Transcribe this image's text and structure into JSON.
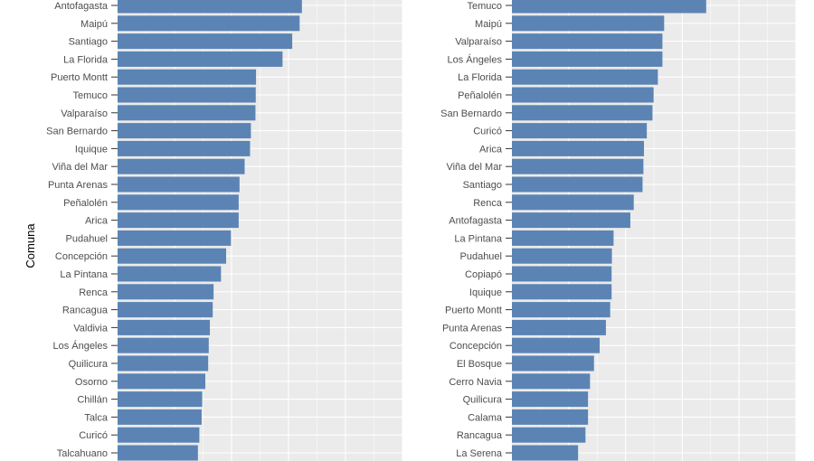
{
  "chart_data": [
    {
      "type": "bar",
      "orientation": "horizontal",
      "ylabel": "Comuna",
      "xlabel": "",
      "xlim": [
        0,
        100
      ],
      "grid": true,
      "colors": {
        "bar": "#5b84b4",
        "panel": "#ebebeb",
        "grid": "#ffffff"
      },
      "categories": [
        "Antofagasta",
        "Maipú",
        "Santiago",
        "La Florida",
        "Puerto Montt",
        "Temuco",
        "Valparaíso",
        "San Bernardo",
        "Iquique",
        "Viña del Mar",
        "Punta Arenas",
        "Peñalolén",
        "Arica",
        "Pudahuel",
        "Concepción",
        "La Pintana",
        "Renca",
        "Rancagua",
        "Valdivia",
        "Los Ángeles",
        "Quilicura",
        "Osorno",
        "Chillán",
        "Talca",
        "Curicó",
        "Talcahuano"
      ],
      "values": [
        64.7,
        63.9,
        61.3,
        57.9,
        48.6,
        48.5,
        48.4,
        46.8,
        46.5,
        44.6,
        42.8,
        42.5,
        42.5,
        39.8,
        38.1,
        36.3,
        33.7,
        33.4,
        32.4,
        32.0,
        31.8,
        30.8,
        29.7,
        29.5,
        28.7,
        28.2
      ]
    },
    {
      "type": "bar",
      "orientation": "horizontal",
      "ylabel": "",
      "xlabel": "",
      "xlim": [
        0,
        100
      ],
      "grid": true,
      "colors": {
        "bar": "#5b84b4",
        "panel": "#ebebeb",
        "grid": "#ffffff"
      },
      "categories": [
        "Temuco",
        "Maipú",
        "Valparaíso",
        "Los Ángeles",
        "La Florida",
        "Peñalolén",
        "San Bernardo",
        "Curicó",
        "Arica",
        "Viña del Mar",
        "Santiago",
        "Renca",
        "Antofagasta",
        "La Pintana",
        "Pudahuel",
        "Copiapó",
        "Iquique",
        "Puerto Montt",
        "Punta Arenas",
        "Concepción",
        "El Bosque",
        "Cerro Navia",
        "Quilicura",
        "Calama",
        "Rancagua",
        "La Serena"
      ],
      "values": [
        68.4,
        53.6,
        53.0,
        53.0,
        51.4,
        49.9,
        49.5,
        47.5,
        46.5,
        46.3,
        46.0,
        42.9,
        41.7,
        35.8,
        35.2,
        35.1,
        35.1,
        34.6,
        33.1,
        30.9,
        28.9,
        27.5,
        26.8,
        26.8,
        25.9,
        23.3
      ]
    }
  ]
}
